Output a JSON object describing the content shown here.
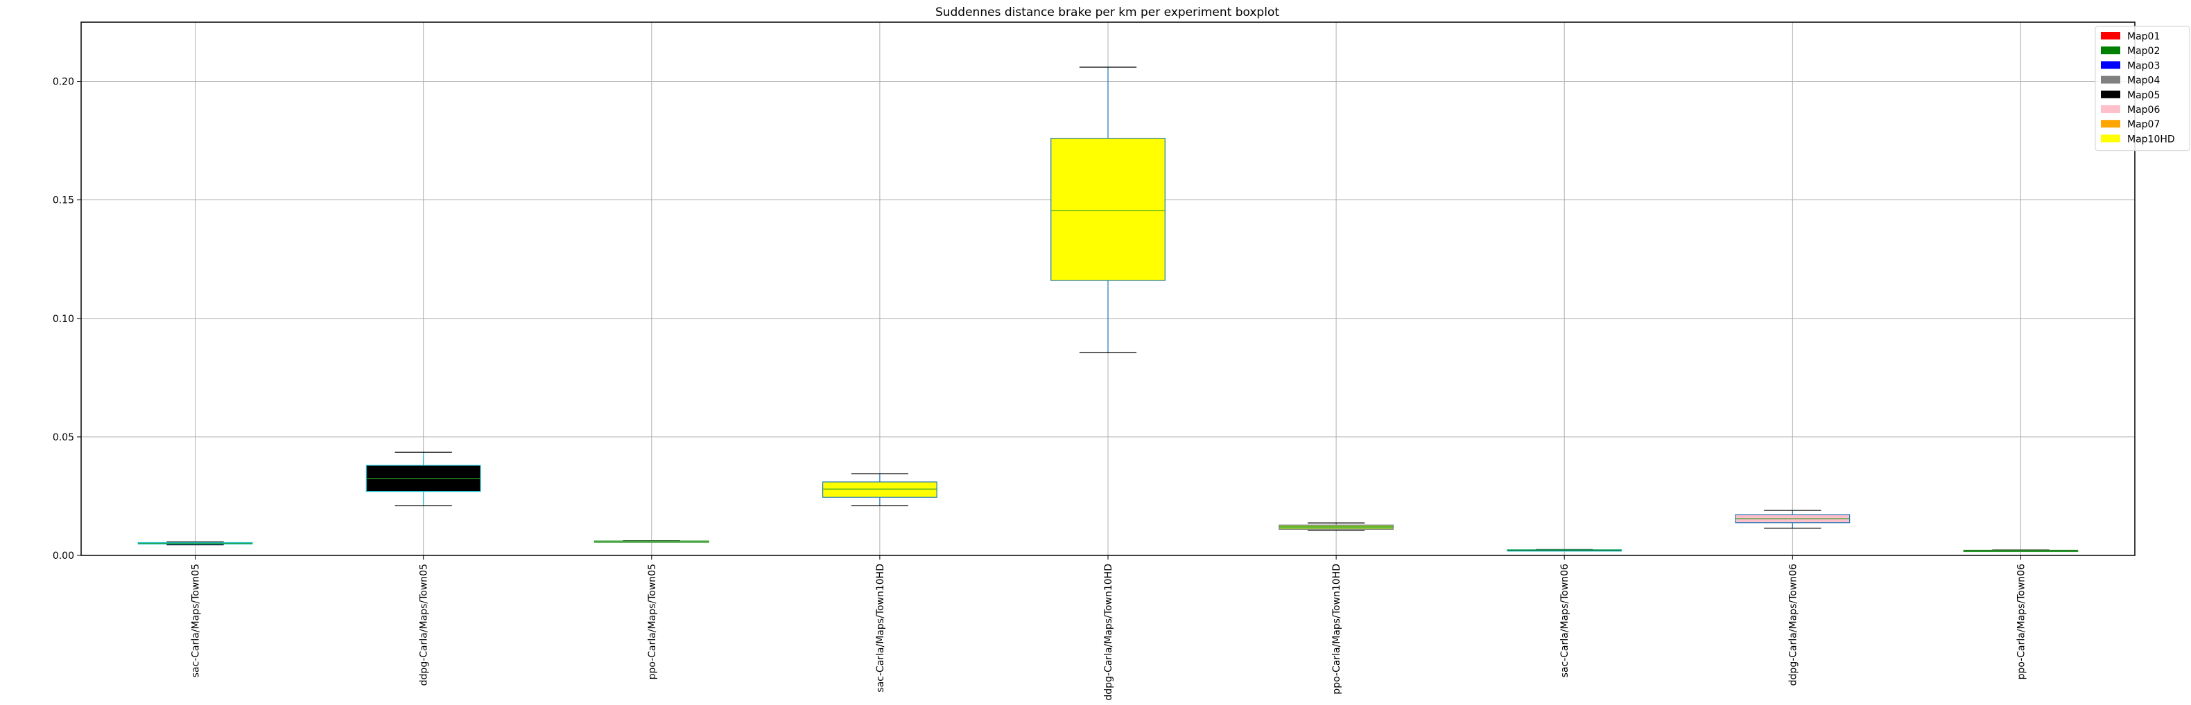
{
  "chart_data": {
    "type": "boxplot",
    "title": "Suddennes distance brake per km per experiment boxplot",
    "xlabel": "",
    "ylabel": "",
    "ylim": [
      0,
      0.225
    ],
    "yticks": [
      "0.00",
      "0.05",
      "0.10",
      "0.15",
      "0.20"
    ],
    "grid": true,
    "legend_placement": "top-right",
    "legend": [
      {
        "label": "Map01",
        "color": "#ff0000"
      },
      {
        "label": "Map02",
        "color": "#008000"
      },
      {
        "label": "Map03",
        "color": "#0000ff"
      },
      {
        "label": "Map04",
        "color": "#808080"
      },
      {
        "label": "Map05",
        "color": "#000000"
      },
      {
        "label": "Map06",
        "color": "#ffc0cb"
      },
      {
        "label": "Map07",
        "color": "#ffa500"
      },
      {
        "label": "Map10HD",
        "color": "#ffff00"
      }
    ],
    "categories": [
      "sac-Carla/Maps/Town05",
      "ddpg-Carla/Maps/Town05",
      "ppo-Carla/Maps/Town05",
      "sac-Carla/Maps/Town10HD",
      "ddpg-Carla/Maps/Town10HD",
      "ppo-Carla/Maps/Town10HD",
      "sac-Carla/Maps/Town06",
      "ddpg-Carla/Maps/Town06",
      "ppo-Carla/Maps/Town06"
    ],
    "boxes": [
      {
        "whislo": 0.0045,
        "q1": 0.0048,
        "med": 0.0051,
        "q3": 0.0054,
        "whishi": 0.0057,
        "fill": "#000000",
        "edge": "#17becf"
      },
      {
        "whislo": 0.021,
        "q1": 0.027,
        "med": 0.0325,
        "q3": 0.038,
        "whishi": 0.0435,
        "fill": "#000000",
        "edge": "#17becf"
      },
      {
        "whislo": 0.0058,
        "q1": 0.0059,
        "med": 0.006,
        "q3": 0.0061,
        "whishi": 0.0062,
        "fill": "#ffc0cb",
        "edge": "#2ca02c"
      },
      {
        "whislo": 0.021,
        "q1": 0.0245,
        "med": 0.028,
        "q3": 0.031,
        "whishi": 0.0345,
        "fill": "#ffff00",
        "edge": "#1f77b4"
      },
      {
        "whislo": 0.0855,
        "q1": 0.116,
        "med": 0.1455,
        "q3": 0.176,
        "whishi": 0.206,
        "fill": "#ffff00",
        "edge": "#1f77b4"
      },
      {
        "whislo": 0.0105,
        "q1": 0.011,
        "med": 0.012,
        "q3": 0.0128,
        "whishi": 0.0137,
        "fill": "#9acd32",
        "edge": "#808080"
      },
      {
        "whislo": 0.0021,
        "q1": 0.0022,
        "med": 0.0023,
        "q3": 0.0024,
        "whishi": 0.0025,
        "fill": "#000000",
        "edge": "#17becf"
      },
      {
        "whislo": 0.0115,
        "q1": 0.0138,
        "med": 0.0155,
        "q3": 0.0172,
        "whishi": 0.019,
        "fill": "#ffc0cb",
        "edge": "#1f77b4"
      },
      {
        "whislo": 0.0019,
        "q1": 0.002,
        "med": 0.0021,
        "q3": 0.0022,
        "whishi": 0.0023,
        "fill": "#000000",
        "edge": "#2ca02c"
      }
    ]
  }
}
